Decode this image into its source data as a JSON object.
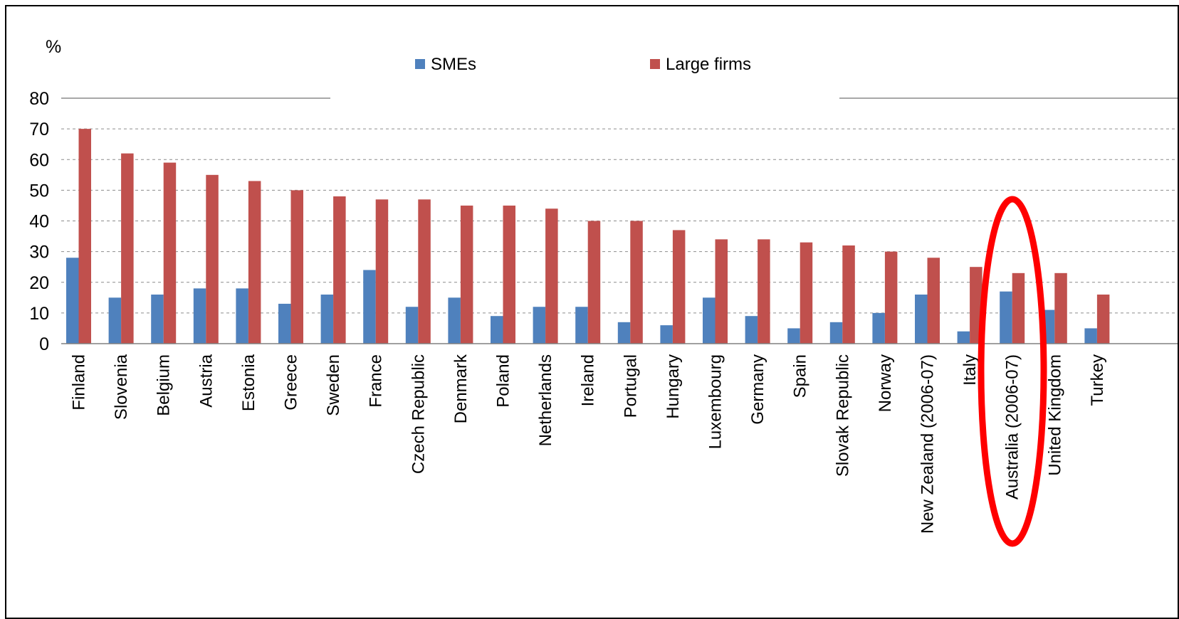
{
  "chart_data": {
    "type": "bar",
    "ylabel": "%",
    "ylim": [
      0,
      80
    ],
    "yticks": [
      "0",
      "10",
      "20",
      "30",
      "40",
      "50",
      "60",
      "70",
      "80"
    ],
    "grid": true,
    "legend": {
      "placement": "top-center"
    },
    "categories": [
      "Finland",
      "Slovenia",
      "Belgium",
      "Austria",
      "Estonia",
      "Greece",
      "Sweden",
      "France",
      "Czech Republic",
      "Denmark",
      "Poland",
      "Netherlands",
      "Ireland",
      "Portugal",
      "Hungary",
      "Luxembourg",
      "Germany",
      "Spain",
      "Slovak Republic",
      "Norway",
      "New Zealand (2006-07)",
      "Italy",
      "Australia (2006-07)",
      "United Kingdom",
      "Turkey"
    ],
    "series": [
      {
        "name": "SMEs",
        "color": "#4F81BD",
        "values": [
          28,
          15,
          16,
          18,
          18,
          13,
          16,
          24,
          12,
          15,
          9,
          12,
          12,
          7,
          6,
          15,
          9,
          5,
          7,
          10,
          16,
          4,
          17,
          11,
          5
        ]
      },
      {
        "name": "Large firms",
        "color": "#C0504D",
        "values": [
          70,
          62,
          59,
          55,
          53,
          50,
          48,
          47,
          47,
          45,
          45,
          44,
          40,
          40,
          37,
          34,
          34,
          33,
          32,
          30,
          28,
          25,
          23,
          23,
          16
        ]
      }
    ],
    "annotations": [
      {
        "type": "ellipse",
        "target": "Australia (2006-07)",
        "color": "#FF0000"
      }
    ]
  }
}
